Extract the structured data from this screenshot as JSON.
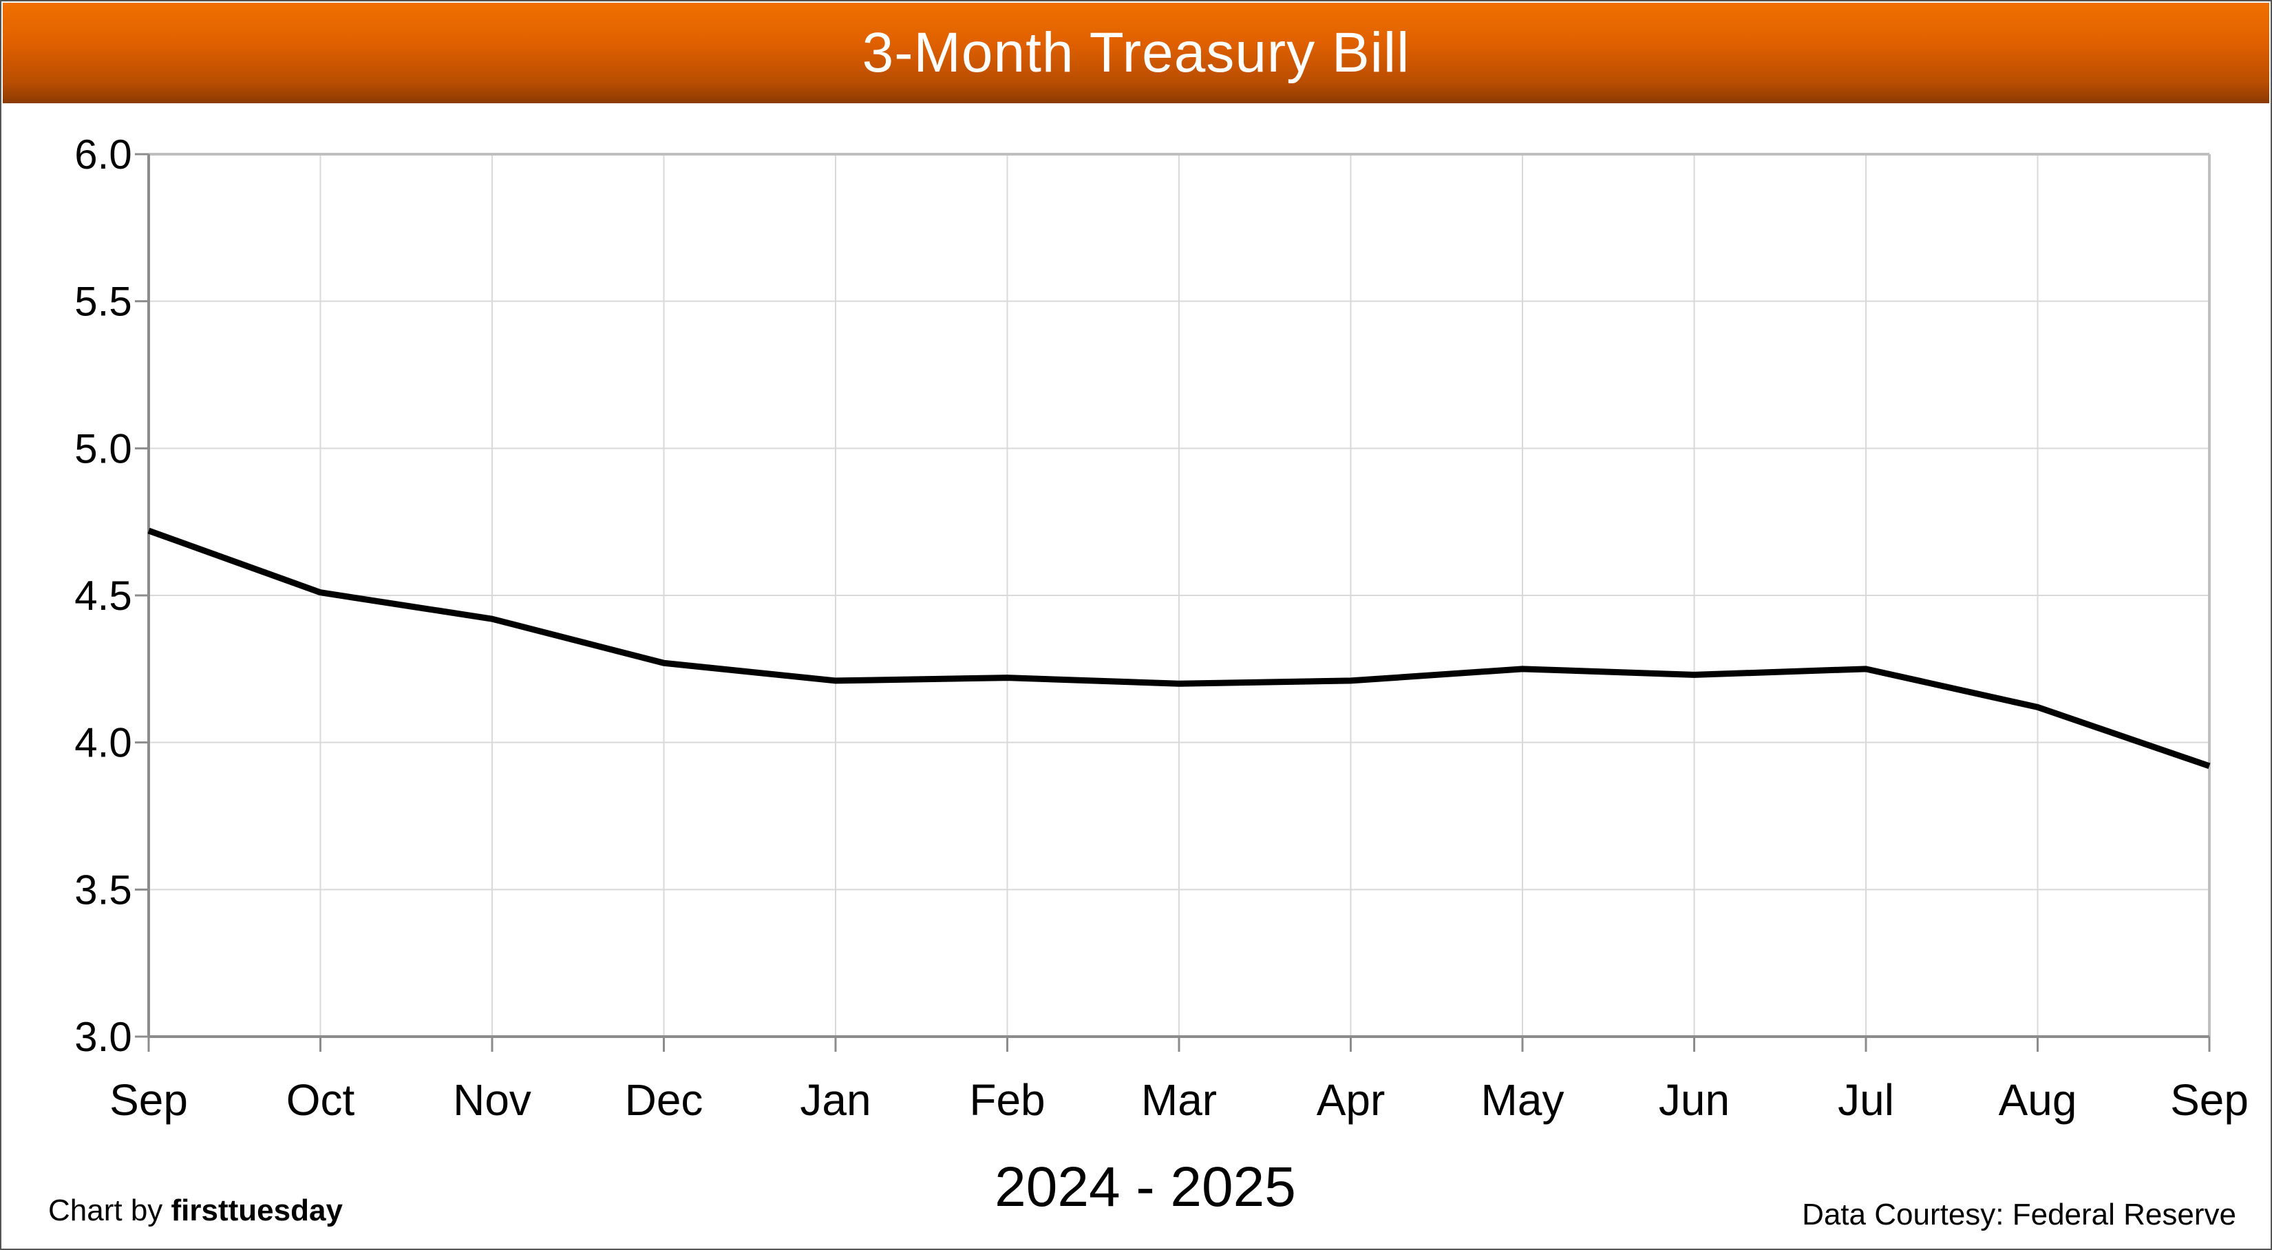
{
  "header": {
    "title": "3-Month Treasury Bill"
  },
  "footer": {
    "credit_prefix": "Chart by",
    "credit_brand": "firsttuesday",
    "source": "Data Courtesy: Federal Reserve"
  },
  "chart_data": {
    "type": "line",
    "title": "3-Month Treasury Bill",
    "xlabel": "2024 - 2025",
    "ylabel": "",
    "categories": [
      "Sep",
      "Oct",
      "Nov",
      "Dec",
      "Jan",
      "Feb",
      "Mar",
      "Apr",
      "May",
      "Jun",
      "Jul",
      "Aug",
      "Sep"
    ],
    "y_ticks": [
      "3.0",
      "3.5",
      "4.0",
      "4.5",
      "5.0",
      "5.5",
      "6.0"
    ],
    "ylim": [
      3.0,
      6.0
    ],
    "grid": true,
    "legend": "none",
    "series": [
      {
        "values": [
          4.72,
          4.51,
          4.42,
          4.27,
          4.21,
          4.22,
          4.2,
          4.21,
          4.25,
          4.23,
          4.25,
          4.12,
          3.92
        ],
        "color": "#000000"
      }
    ]
  }
}
